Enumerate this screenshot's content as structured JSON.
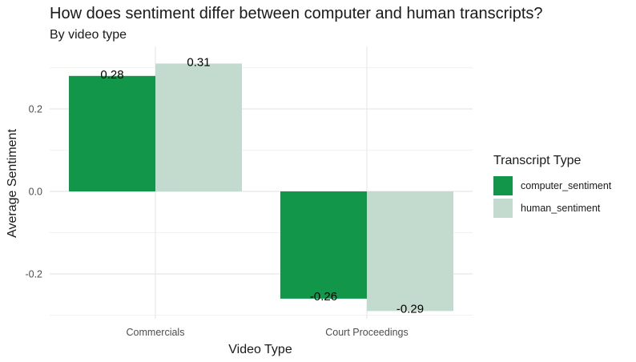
{
  "chart_data": {
    "type": "bar",
    "title": "How does sentiment differ between computer and human transcripts?",
    "subtitle": "By video type",
    "xlabel": "Video Type",
    "ylabel": "Average Sentiment",
    "categories": [
      "Commercials",
      "Court Proceedings"
    ],
    "series": [
      {
        "name": "computer_sentiment",
        "color": "#11964A",
        "values": [
          0.28,
          -0.26
        ],
        "labels": [
          "0.28",
          "-0.26"
        ]
      },
      {
        "name": "human_sentiment",
        "color": "#C3DBCF",
        "values": [
          0.31,
          -0.29
        ],
        "labels": [
          "0.31",
          "-0.29"
        ]
      }
    ],
    "ylim": [
      -0.3,
      0.32
    ],
    "yticks": [
      -0.2,
      0.0,
      0.2
    ],
    "ytick_labels": [
      "-0.2",
      "0.0",
      "0.2"
    ],
    "grid": true,
    "legend": {
      "title": "Transcript Type",
      "position": "right"
    }
  }
}
